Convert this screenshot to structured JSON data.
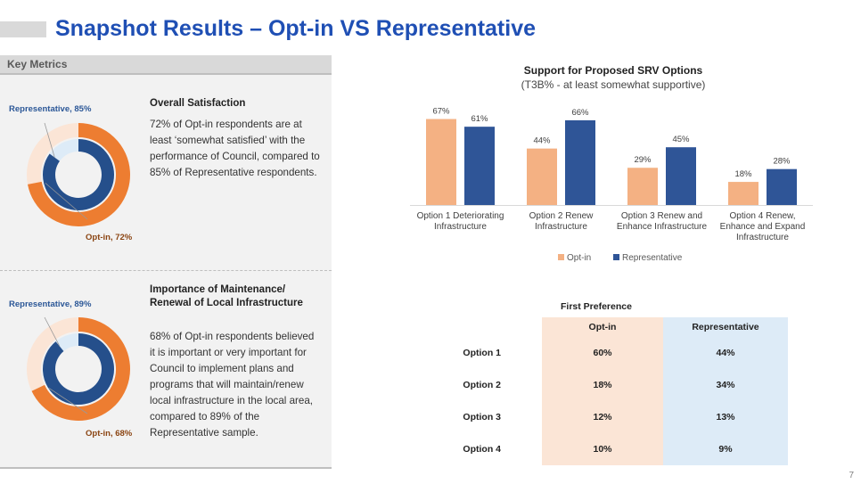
{
  "title": "Snapshot Results – Opt-in VS Representative",
  "key_metrics_label": "Key Metrics",
  "colors": {
    "optin": "#ed7d31",
    "representative": "#254f8b",
    "optin_light": "#fbe5d6",
    "rep_light": "#ddebf7",
    "title_blue": "#1f4fb4"
  },
  "metrics": [
    {
      "heading": "Overall Satisfaction",
      "body": "72% of Opt-in respondents are at least ‘somewhat satisfied’ with the performance of Council, compared to 85% of Representative respondents.",
      "rep_label": "Representative, 85%",
      "optin_label": "Opt-in, 72%",
      "rep_value": 85,
      "optin_value": 72
    },
    {
      "heading": "Importance of Maintenance/ Renewal of Local Infrastructure",
      "body": "68% of Opt-in respondents believed it is important or very important for Council to implement plans and programs that will maintain/renew local infrastructure in the local area, compared to 89% of the Representative sample.",
      "rep_label": "Representative, 89%",
      "optin_label": "Opt-in, 68%",
      "rep_value": 89,
      "optin_value": 68
    }
  ],
  "chart_data": {
    "type": "bar",
    "title": "Support for Proposed SRV Options",
    "subtitle": "(T3B% - at least somewhat supportive)",
    "categories": [
      [
        "Option 1 Deteriorating",
        "Infrastructure"
      ],
      [
        "Option 2 Renew",
        "Infrastructure"
      ],
      [
        "Option 3 Renew and",
        "Enhance Infrastructure"
      ],
      [
        "Option 4 Renew,",
        "Enhance and Expand",
        "Infrastructure"
      ]
    ],
    "series": [
      {
        "name": "Opt-in",
        "values": [
          67,
          44,
          29,
          18
        ],
        "labels": [
          "67%",
          "44%",
          "29%",
          "18%"
        ],
        "color": "#f4b183"
      },
      {
        "name": "Representative",
        "values": [
          61,
          66,
          45,
          28
        ],
        "labels": [
          "61%",
          "66%",
          "45%",
          "28%"
        ],
        "color": "#2f5597"
      }
    ],
    "ylim": [
      0,
      75
    ],
    "legend": "bottom"
  },
  "preference_table": {
    "title": "First Preference",
    "columns": [
      "Opt-in",
      "Representative"
    ],
    "rows": [
      {
        "label": "Option 1",
        "optin": "60%",
        "rep": "44%"
      },
      {
        "label": "Option 2",
        "optin": "18%",
        "rep": "34%"
      },
      {
        "label": "Option 3",
        "optin": "12%",
        "rep": "13%"
      },
      {
        "label": "Option 4",
        "optin": "10%",
        "rep": "9%"
      }
    ]
  },
  "page_number": "7"
}
